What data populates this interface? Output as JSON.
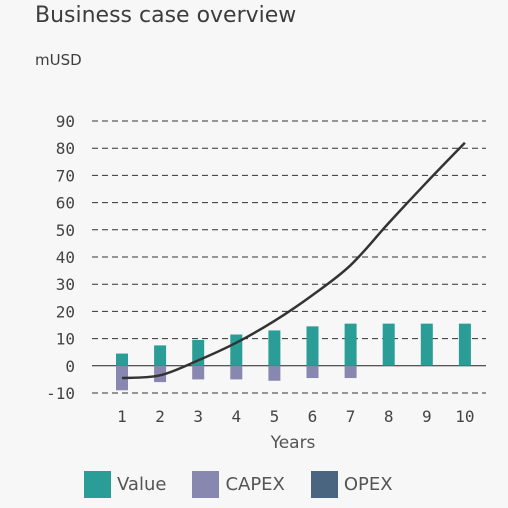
{
  "header": {
    "title": "Business case overview",
    "unit": "mUSD"
  },
  "chart_data": {
    "type": "bar",
    "title": "Business case overview",
    "ylabel": "mUSD",
    "xlabel": "Years",
    "categories": [
      "1",
      "2",
      "3",
      "4",
      "5",
      "6",
      "7",
      "8",
      "9",
      "10"
    ],
    "ylim": [
      -10,
      90
    ],
    "yticks": [
      90,
      80,
      70,
      60,
      50,
      40,
      30,
      20,
      10,
      0,
      -10
    ],
    "grid": "dashed-horizontal",
    "legend_position": "bottom",
    "series": [
      {
        "name": "Value",
        "type": "bar",
        "color": "#2a9d96",
        "values": [
          4.5,
          7.5,
          9.5,
          11.5,
          13,
          14.5,
          15.5,
          15.5,
          15.5,
          15.5
        ]
      },
      {
        "name": "CAPEX",
        "type": "bar",
        "color": "#8787b0",
        "values": [
          -9,
          -6,
          -5,
          -5,
          -5.5,
          -4.5,
          -4.5,
          0,
          0,
          0
        ]
      },
      {
        "name": "OPEX",
        "type": "bar",
        "color": "#4a6580",
        "values": [
          0,
          0,
          0,
          0,
          0,
          0,
          0,
          0,
          0,
          0
        ]
      },
      {
        "name": "",
        "type": "line",
        "color": "#333333",
        "values": [
          -4.5,
          -3.5,
          2,
          8.5,
          16.5,
          26,
          37,
          52.5,
          67.5,
          82
        ]
      }
    ]
  },
  "legend": [
    {
      "label": "Value",
      "color": "#2a9d96"
    },
    {
      "label": "CAPEX",
      "color": "#8787b0"
    },
    {
      "label": "OPEX",
      "color": "#4a6580"
    }
  ]
}
